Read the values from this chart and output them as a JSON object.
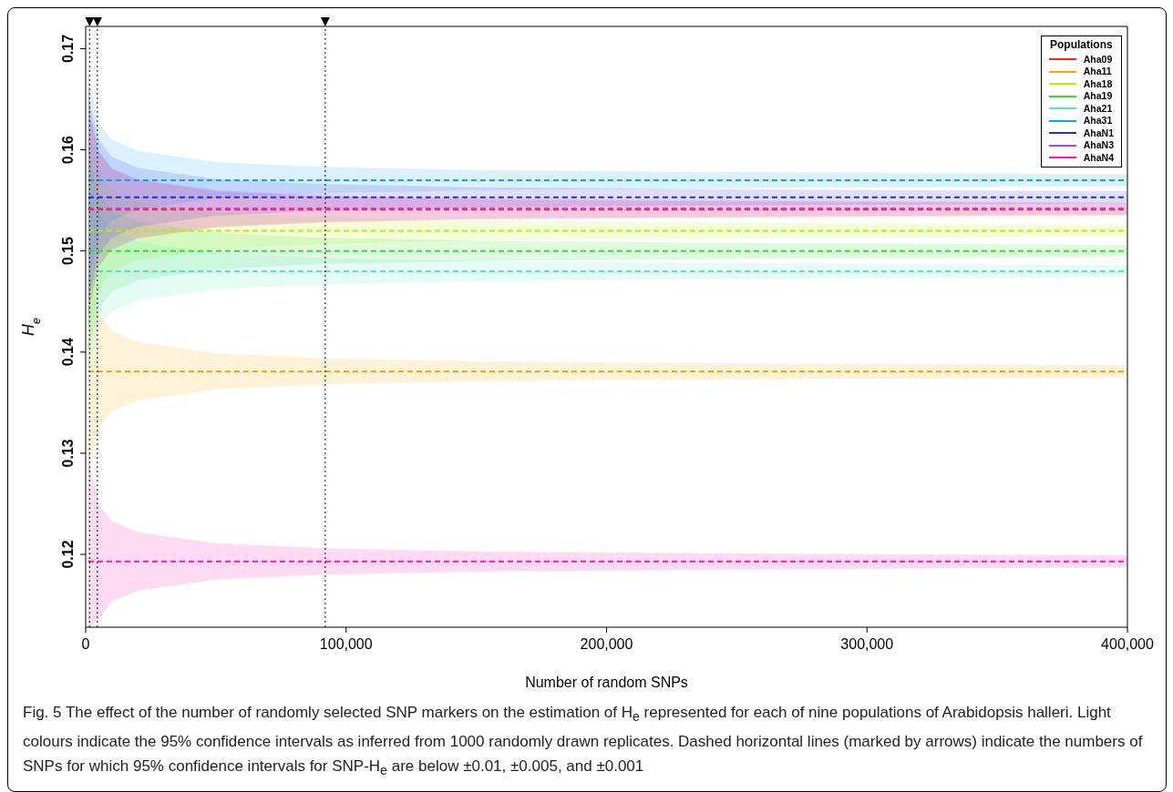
{
  "chart_data": {
    "type": "line",
    "xlabel": "Number of random SNPs",
    "ylabel": "H$_{e}$",
    "legend_title": "Populations",
    "x": [
      1000,
      2000,
      5000,
      10000,
      20000,
      50000,
      92000,
      150000,
      250000,
      400000
    ],
    "xlim": [
      0,
      400000
    ],
    "xticks": [
      0,
      {
        "value": 100000,
        "label": "100,000"
      },
      {
        "value": 200000,
        "label": "200,000"
      },
      {
        "value": 300000,
        "label": "300,000"
      },
      {
        "value": 400000,
        "label": "400,000"
      }
    ],
    "ylim": [
      0.1128,
      0.1722
    ],
    "yticks": [
      0.12,
      0.13,
      0.14,
      0.15,
      0.16,
      0.17
    ],
    "grid": false,
    "legend": "top right",
    "line_style": "dashed",
    "series": [
      {
        "name": "Aha09",
        "color": "#ff2020",
        "values": [
          0.1541,
          0.1541,
          0.1541,
          0.1541,
          0.1541,
          0.1541,
          0.1541,
          0.1541,
          0.1541,
          0.1541
        ],
        "lower": [
          0.1421,
          0.1451,
          0.1484,
          0.1501,
          0.1512,
          0.1523,
          0.1528,
          0.1531,
          0.1533,
          0.1535
        ],
        "upper": [
          0.1661,
          0.1631,
          0.1598,
          0.1581,
          0.157,
          0.1559,
          0.1554,
          0.1551,
          0.1549,
          0.1547
        ]
      },
      {
        "name": "Aha11",
        "color": "#ffa500",
        "values": [
          0.1381,
          0.1381,
          0.1381,
          0.1381,
          0.1381,
          0.1381,
          0.1381,
          0.1381,
          0.1381,
          0.1381
        ],
        "lower": [
          0.1261,
          0.1291,
          0.1324,
          0.1341,
          0.1352,
          0.1363,
          0.1368,
          0.1371,
          0.1373,
          0.1375
        ],
        "upper": [
          0.1501,
          0.1471,
          0.1438,
          0.1421,
          0.141,
          0.1399,
          0.1394,
          0.1391,
          0.1389,
          0.1387
        ]
      },
      {
        "name": "Aha18",
        "color": "#b4f000",
        "values": [
          0.152,
          0.152,
          0.152,
          0.152,
          0.152,
          0.152,
          0.152,
          0.152,
          0.152,
          0.152
        ],
        "lower": [
          0.14,
          0.143,
          0.1463,
          0.148,
          0.1491,
          0.1502,
          0.1507,
          0.151,
          0.1512,
          0.1514
        ],
        "upper": [
          0.164,
          0.161,
          0.1577,
          0.156,
          0.1549,
          0.1538,
          0.1533,
          0.153,
          0.1528,
          0.1526
        ]
      },
      {
        "name": "Aha19",
        "color": "#30e030",
        "values": [
          0.15,
          0.15,
          0.15,
          0.15,
          0.15,
          0.15,
          0.15,
          0.15,
          0.15,
          0.15
        ],
        "lower": [
          0.138,
          0.141,
          0.1443,
          0.146,
          0.1471,
          0.1482,
          0.1487,
          0.149,
          0.1492,
          0.1494
        ],
        "upper": [
          0.162,
          0.159,
          0.1557,
          0.154,
          0.1529,
          0.1518,
          0.1513,
          0.151,
          0.1508,
          0.1506
        ]
      },
      {
        "name": "Aha21",
        "color": "#50e8c0",
        "values": [
          0.148,
          0.148,
          0.148,
          0.148,
          0.148,
          0.148,
          0.148,
          0.148,
          0.148,
          0.148
        ],
        "lower": [
          0.136,
          0.139,
          0.1423,
          0.144,
          0.1451,
          0.1462,
          0.1467,
          0.147,
          0.1472,
          0.1474
        ],
        "upper": [
          0.16,
          0.157,
          0.1537,
          0.152,
          0.1509,
          0.1498,
          0.1493,
          0.149,
          0.1488,
          0.1486
        ]
      },
      {
        "name": "Aha31",
        "color": "#10a0f0",
        "values": [
          0.157,
          0.157,
          0.157,
          0.157,
          0.157,
          0.157,
          0.157,
          0.157,
          0.157,
          0.157
        ],
        "lower": [
          0.145,
          0.148,
          0.1513,
          0.153,
          0.1541,
          0.1552,
          0.1557,
          0.156,
          0.1562,
          0.1564
        ],
        "upper": [
          0.169,
          0.166,
          0.1627,
          0.161,
          0.1599,
          0.1588,
          0.1583,
          0.158,
          0.1578,
          0.1576
        ]
      },
      {
        "name": "AhaN1",
        "color": "#2828e0",
        "values": [
          0.1553,
          0.1553,
          0.1553,
          0.1553,
          0.1553,
          0.1553,
          0.1553,
          0.1553,
          0.1553,
          0.1553
        ],
        "lower": [
          0.1433,
          0.1463,
          0.1496,
          0.1513,
          0.1524,
          0.1535,
          0.154,
          0.1543,
          0.1545,
          0.1547
        ],
        "upper": [
          0.1673,
          0.1643,
          0.161,
          0.1593,
          0.1582,
          0.1571,
          0.1566,
          0.1563,
          0.1561,
          0.1559
        ]
      },
      {
        "name": "AhaN3",
        "color": "#b040f0",
        "values": [
          0.1542,
          0.1542,
          0.1542,
          0.1542,
          0.1542,
          0.1542,
          0.1542,
          0.1542,
          0.1542,
          0.1542
        ],
        "lower": [
          0.1422,
          0.1452,
          0.1485,
          0.1502,
          0.1513,
          0.1524,
          0.1529,
          0.1532,
          0.1534,
          0.1536
        ],
        "upper": [
          0.1662,
          0.1632,
          0.1599,
          0.1582,
          0.1571,
          0.156,
          0.1555,
          0.1552,
          0.155,
          0.1548
        ]
      },
      {
        "name": "AhaN4",
        "color": "#ff10b0",
        "values": [
          0.1193,
          0.1193,
          0.1193,
          0.1193,
          0.1193,
          0.1193,
          0.1193,
          0.1193,
          0.1193,
          0.1193
        ],
        "lower": [
          0.113,
          0.113,
          0.1136,
          0.1153,
          0.1164,
          0.1175,
          0.118,
          0.1183,
          0.1185,
          0.1187
        ],
        "upper": [
          0.1313,
          0.1283,
          0.125,
          0.1233,
          0.1222,
          0.1211,
          0.1206,
          0.1203,
          0.1201,
          0.1199
        ]
      }
    ],
    "ref_lines": [
      {
        "axis": "x",
        "value": 1500,
        "color": "#000000",
        "line_style": "dotted"
      },
      {
        "axis": "x",
        "value": 4500,
        "color": "#000000",
        "line_style": "dotted"
      },
      {
        "axis": "x",
        "value": 92000,
        "color": "#000000",
        "line_style": "dotted"
      }
    ],
    "annotations": [
      "Fig. 5 The effect of the number of randomly selected SNP markers on the estimation of H$_{e}$ represented for each of nine populations of Arabidopsis halleri. Light colours indicate the 95% confidence intervals as inferred from 1000 randomly drawn replicates. Dashed horizontal lines (marked by arrows) indicate the numbers of SNPs for which 95% confidence intervals for SNP-H$_{e}$ are below ±0.01, ±0.005, and ±0.001"
    ]
  }
}
